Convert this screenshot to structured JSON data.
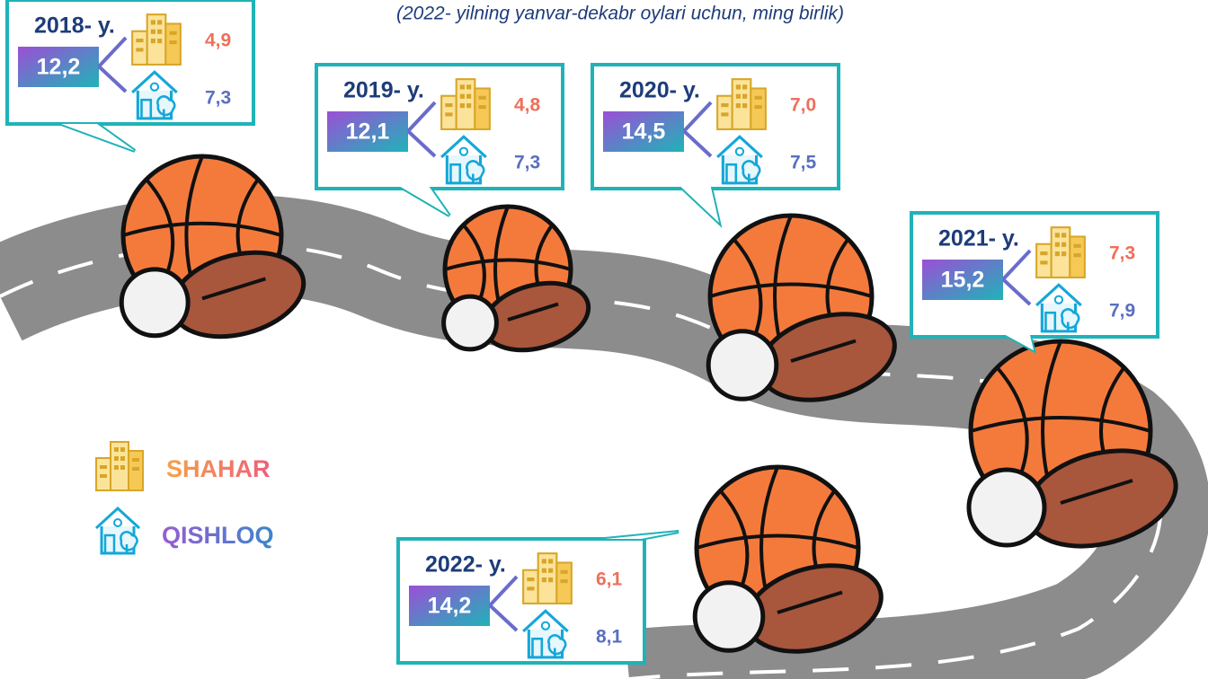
{
  "subtitle": "(2022- yilning yanvar-dekabr oylari uchun, ming birlik)",
  "years": [
    {
      "label": "2018- y.",
      "total": "12,2",
      "urban": "4,9",
      "rural": "7,3"
    },
    {
      "label": "2019- y.",
      "total": "12,1",
      "urban": "4,8",
      "rural": "7,3"
    },
    {
      "label": "2020- y.",
      "total": "14,5",
      "urban": "7,0",
      "rural": "7,5"
    },
    {
      "label": "2021- y.",
      "total": "15,2",
      "urban": "7,3",
      "rural": "7,9"
    },
    {
      "label": "2022- y.",
      "total": "14,2",
      "urban": "6,1",
      "rural": "8,1"
    }
  ],
  "legend": {
    "urban": "SHAHAR",
    "rural": "QISHLOQ"
  }
}
